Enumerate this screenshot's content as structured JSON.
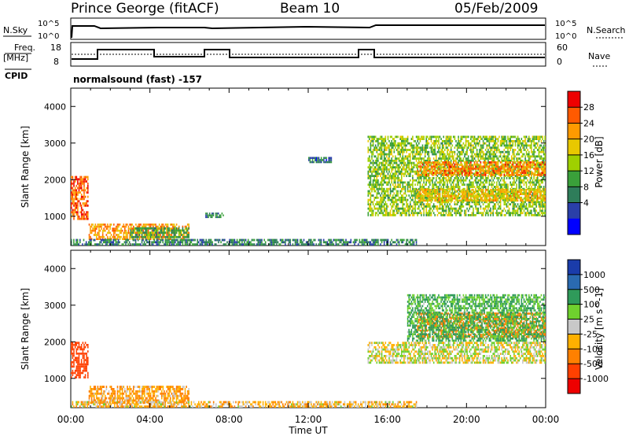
{
  "header": {
    "station": "Prince George (fitACF)",
    "beam": "Beam 10",
    "date": "05/Feb/2009"
  },
  "noise_panel": {
    "left_label": "N.Sky",
    "right_label": "N.Search",
    "tick_top": "10^5",
    "tick_bottom": "10^0"
  },
  "freq_panel": {
    "left_label_1": "Freq.",
    "left_label_2": "[MHz]",
    "right_label": "Nave",
    "left_ticks": [
      "18",
      "8"
    ],
    "right_ticks": [
      "60",
      "0"
    ]
  },
  "cpid_panel": {
    "label": "CPID",
    "program": "normalsound (fast) -157"
  },
  "x_axis": {
    "label": "Time UT",
    "ticks": [
      "00:00",
      "04:00",
      "08:00",
      "12:00",
      "16:00",
      "20:00",
      "00:00"
    ]
  },
  "chart_data": [
    {
      "type": "heatmap",
      "title": "",
      "xlabel": "Time UT",
      "ylabel": "Slant Range [km]",
      "xlim": [
        0,
        24
      ],
      "ylim": [
        200,
        4500
      ],
      "y_ticks": [
        1000,
        2000,
        3000,
        4000
      ],
      "colorbar": {
        "label": "Power [dB]",
        "ticks": [
          "28",
          "24",
          "20",
          "16",
          "12",
          "8",
          "4"
        ],
        "colors": [
          "#ee0000",
          "#ff5a00",
          "#ff9a00",
          "#e8c800",
          "#9fd000",
          "#3aa03a",
          "#2e7d5a",
          "#2a3fa8",
          "#0000ff"
        ]
      },
      "regions": [
        {
          "t0": 0.0,
          "t1": 0.9,
          "r0": 900,
          "r1": 2100,
          "level": 26
        },
        {
          "t0": 0.9,
          "t1": 6.0,
          "r0": 350,
          "r1": 800,
          "level": 22
        },
        {
          "t0": 3.0,
          "t1": 6.0,
          "r0": 400,
          "r1": 700,
          "level": 10
        },
        {
          "t0": 0.0,
          "t1": 17.5,
          "r0": 200,
          "r1": 380,
          "level": 8
        },
        {
          "t0": 6.8,
          "t1": 7.8,
          "r0": 950,
          "r1": 1100,
          "level": 8
        },
        {
          "t0": 12.0,
          "t1": 13.2,
          "r0": 2450,
          "r1": 2620,
          "level": 6
        },
        {
          "t0": 15.0,
          "t1": 24.0,
          "r0": 1000,
          "r1": 3200,
          "level": 14
        },
        {
          "t0": 17.5,
          "t1": 24.0,
          "r0": 2100,
          "r1": 2500,
          "level": 24
        },
        {
          "t0": 17.5,
          "t1": 24.0,
          "r0": 1400,
          "r1": 1750,
          "level": 20
        }
      ]
    },
    {
      "type": "heatmap",
      "title": "",
      "xlabel": "Time UT",
      "ylabel": "Slant Range [km]",
      "xlim": [
        0,
        24
      ],
      "ylim": [
        200,
        4500
      ],
      "y_ticks": [
        1000,
        2000,
        3000,
        4000
      ],
      "colorbar": {
        "label": "Velocity [m s^-1]",
        "ticks": [
          "1000",
          "500",
          "100",
          "25",
          "-25",
          "-100",
          "-500",
          "-1000"
        ],
        "colors": [
          "#1a3caa",
          "#2a6ab0",
          "#2f9a5a",
          "#6fd02e",
          "#c8c8c8",
          "#ffb000",
          "#ff8000",
          "#ff4000",
          "#ee0000"
        ]
      },
      "regions": [
        {
          "t0": 0.0,
          "t1": 0.9,
          "r0": 1000,
          "r1": 2000,
          "level": -600
        },
        {
          "t0": 0.9,
          "t1": 6.0,
          "r0": 300,
          "r1": 800,
          "level": -100
        },
        {
          "t0": 0.0,
          "t1": 17.5,
          "r0": 200,
          "r1": 380,
          "level": -60
        },
        {
          "t0": 15.0,
          "t1": 24.0,
          "r0": 1400,
          "r1": 2000,
          "level": 0
        },
        {
          "t0": 17.5,
          "t1": 24.0,
          "r0": 2100,
          "r1": 2800,
          "level": -400
        },
        {
          "t0": 17.0,
          "t1": 24.0,
          "r0": 2000,
          "r1": 3300,
          "level": 120
        }
      ]
    }
  ]
}
